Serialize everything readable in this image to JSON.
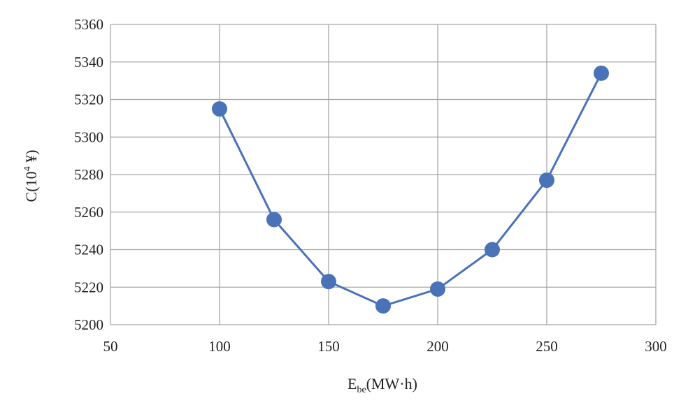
{
  "chart_data": {
    "type": "line",
    "title": "",
    "x_label": {
      "main": "E",
      "sub": "be",
      "unit": "(MW·h)"
    },
    "y_label": {
      "prefix": "C(10",
      "sup": "4",
      "suffix": " ¥)"
    },
    "x_ticks": [
      50,
      100,
      150,
      200,
      250,
      300
    ],
    "y_ticks": [
      5200,
      5220,
      5240,
      5260,
      5280,
      5300,
      5320,
      5340,
      5360
    ],
    "xlim": [
      50,
      300
    ],
    "ylim": [
      5200,
      5360
    ],
    "grid": true,
    "legend": "none",
    "series": [
      {
        "color": "#4a72b8",
        "points": [
          {
            "x": 100,
            "y": 5315
          },
          {
            "x": 125,
            "y": 5256
          },
          {
            "x": 150,
            "y": 5223
          },
          {
            "x": 175,
            "y": 5210
          },
          {
            "x": 200,
            "y": 5219
          },
          {
            "x": 225,
            "y": 5240
          },
          {
            "x": 250,
            "y": 5277
          },
          {
            "x": 275,
            "y": 5334
          }
        ]
      }
    ]
  }
}
